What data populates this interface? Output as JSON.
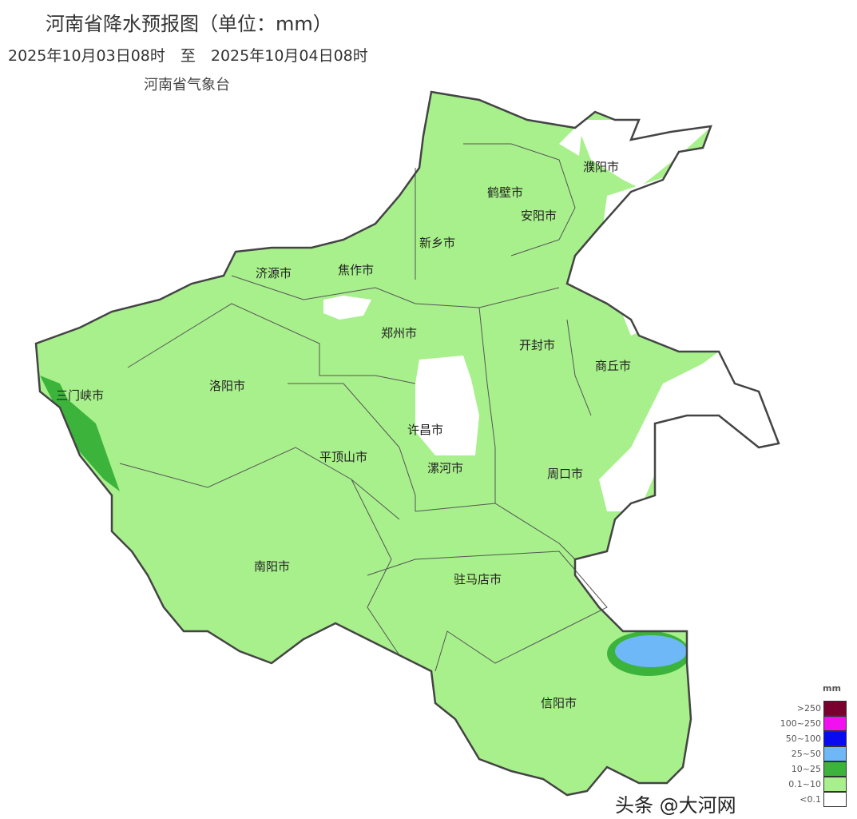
{
  "title": "河南省降水预报图（单位：mm）",
  "period": "2025年10月03日08时　至　2025年10月04日08时",
  "issuer": "河南省气象台",
  "cities": [
    "濮阳市",
    "鹤壁市",
    "安阳市",
    "新乡市",
    "济源市",
    "焦作市",
    "郑州市",
    "开封市",
    "商丘市",
    "三门峡市",
    "洛阳市",
    "许昌市",
    "平顶山市",
    "漯河市",
    "周口市",
    "南阳市",
    "驻马店市",
    "信阳市"
  ],
  "legend": {
    "unit": "mm",
    "classes": [
      {
        "label": ">250",
        "color": "#7a0030"
      },
      {
        "label": "100~250",
        "color": "#f010f0"
      },
      {
        "label": "50~100",
        "color": "#0a0af0"
      },
      {
        "label": "25~50",
        "color": "#6eb8f8"
      },
      {
        "label": "10~25",
        "color": "#3cb43c"
      },
      {
        "label": "0.1~10",
        "color": "#a8f08c"
      },
      {
        "label": "<0.1",
        "color": "#ffffff"
      }
    ]
  },
  "watermark": "头条 @大河网"
}
